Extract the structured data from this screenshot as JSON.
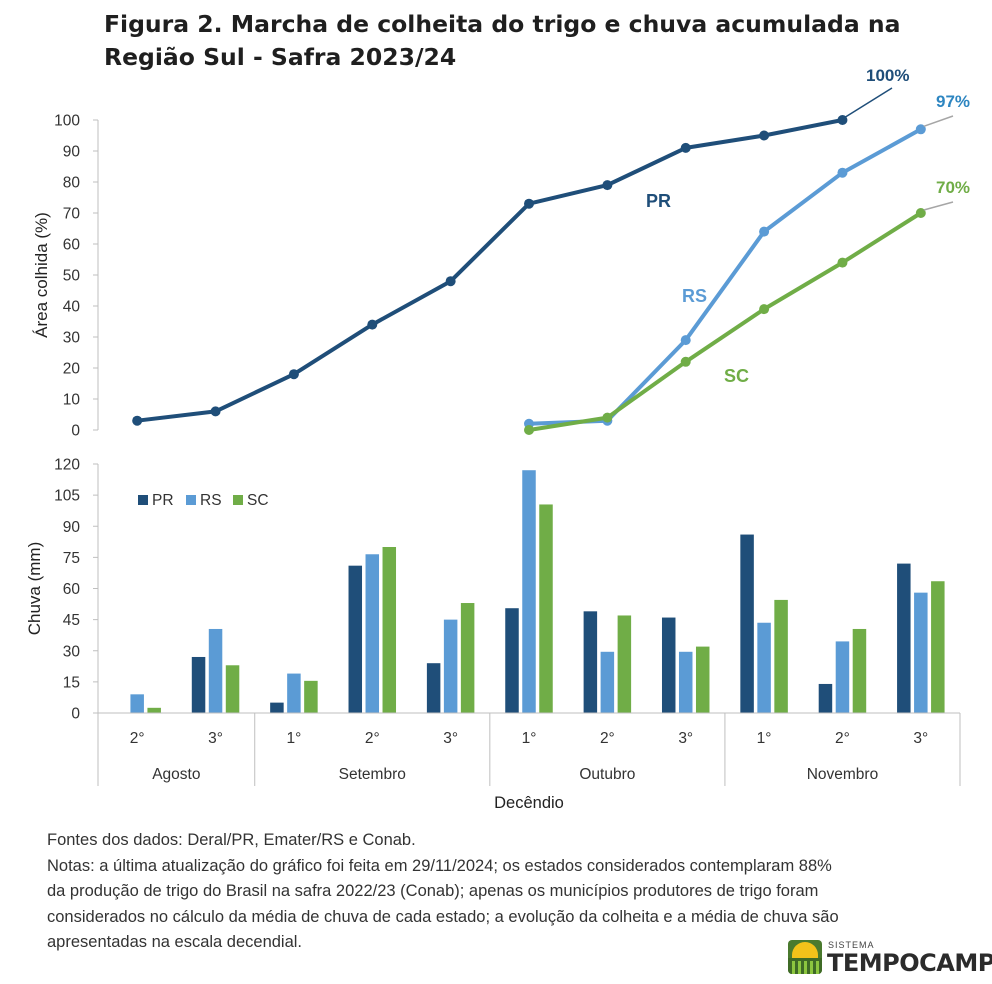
{
  "title": "Figura 2. Marcha de colheita do trigo e chuva acumulada na Região Sul - Safra 2023/24",
  "colors": {
    "PR": "#1f4e79",
    "RS": "#5b9bd5",
    "SC": "#70ad47"
  },
  "chart_data": [
    {
      "type": "line",
      "ylabel": "Área  colhida (%)",
      "ylim": [
        0,
        100
      ],
      "yticks": [
        0,
        10,
        20,
        30,
        40,
        50,
        60,
        70,
        80,
        90,
        100
      ],
      "categories": [
        "Agosto 2°",
        "Agosto 3°",
        "Setembro 1°",
        "Setembro 2°",
        "Setembro 3°",
        "Outubro 1°",
        "Outubro 2°",
        "Outubro 3°",
        "Novembro 1°",
        "Novembro 2°",
        "Novembro 3°"
      ],
      "series": [
        {
          "name": "PR",
          "values": [
            3,
            6,
            18,
            34,
            48,
            73,
            79,
            91,
            95,
            100,
            null
          ],
          "final_label": "100%"
        },
        {
          "name": "RS",
          "values": [
            null,
            null,
            null,
            null,
            null,
            2,
            3,
            29,
            64,
            83,
            97
          ],
          "final_label": "97%"
        },
        {
          "name": "SC",
          "values": [
            null,
            null,
            null,
            null,
            null,
            0,
            4,
            22,
            39,
            54,
            70
          ],
          "final_label": "70%"
        }
      ]
    },
    {
      "type": "bar",
      "ylabel": "Chuva (mm)",
      "xlabel": "Decêndio",
      "ylim": [
        0,
        120
      ],
      "yticks": [
        0,
        15,
        30,
        45,
        60,
        75,
        90,
        105,
        120
      ],
      "legend": [
        "PR",
        "RS",
        "SC"
      ],
      "legend_position": "top-left",
      "categories": [
        "2°",
        "3°",
        "1°",
        "2°",
        "3°",
        "1°",
        "2°",
        "3°",
        "1°",
        "2°",
        "3°"
      ],
      "groups": [
        {
          "label": "Agosto",
          "count": 2
        },
        {
          "label": "Setembro",
          "count": 3
        },
        {
          "label": "Outubro",
          "count": 3
        },
        {
          "label": "Novembro",
          "count": 3
        }
      ],
      "series": [
        {
          "name": "PR",
          "values": [
            0,
            27,
            5,
            71,
            24,
            50.5,
            49,
            46,
            86,
            14,
            72
          ]
        },
        {
          "name": "RS",
          "values": [
            9,
            40.5,
            19,
            76.5,
            45,
            117,
            29.5,
            29.5,
            43.5,
            34.5,
            58
          ]
        },
        {
          "name": "SC",
          "values": [
            2.5,
            23,
            15.5,
            80,
            53,
            100.5,
            47,
            32,
            54.5,
            40.5,
            63.5
          ]
        }
      ]
    }
  ],
  "notes": [
    "Fontes dos dados: Deral/PR, Emater/RS e Conab.",
    "Notas: a última atualização do gráfico foi feita em 29/11/2024; os estados considerados contemplaram 88%",
    "da produção de trigo do Brasil na safra 2022/23 (Conab); apenas os municípios produtores de trigo foram",
    "considerados no cálculo da média de chuva de cada estado; a evolução da colheita e a média de chuva são",
    "apresentadas na escala decendial."
  ],
  "logo": {
    "small": "SISTEMA",
    "big": "TEMPOCAMPO"
  }
}
